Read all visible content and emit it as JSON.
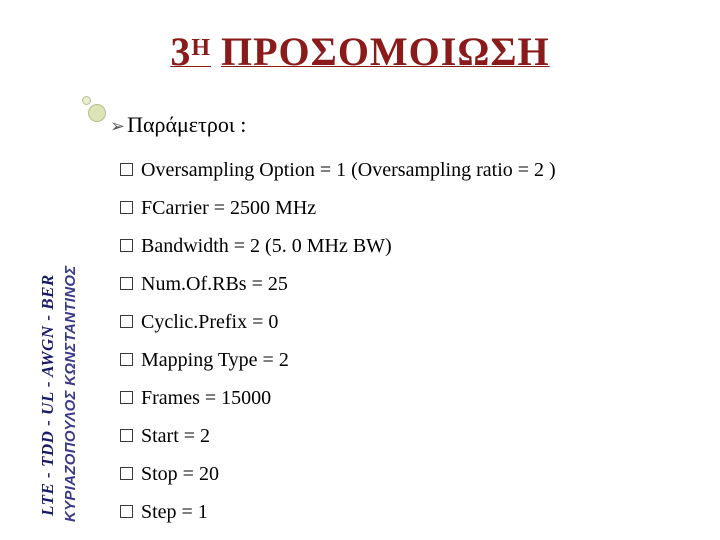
{
  "title": {
    "three": "3",
    "sup": "Η",
    "rest": "ΠΡΟΣΟΜΟΙΩΣΗ",
    "color": "#8b1a1a"
  },
  "params_header": {
    "bullet": "➢",
    "text": "Παράμετροι :",
    "text_color": "#000000"
  },
  "items": [
    "Oversampling Option = 1 (Oversampling ratio = 2 )",
    "FCarrier = 2500 MHz",
    "Bandwidth = 2 (5. 0 MHz BW)",
    "Num.Of.RBs = 25",
    "Cyclic.Prefix = 0",
    "Mapping Type = 2",
    "Frames = 15000",
    "Start = 2",
    "Stop = 20",
    "Step = 1"
  ],
  "sidetext": {
    "line1": "LTE - TDD - UL - AWGN - BER",
    "line2": "ΚΥΡΙΑΖΟΠΟΥΛΟΣ ΚΩΝΣΤΑΝΤΙΝΟΣ"
  },
  "colors": {
    "item_text": "#000000",
    "background": "#ffffff"
  }
}
